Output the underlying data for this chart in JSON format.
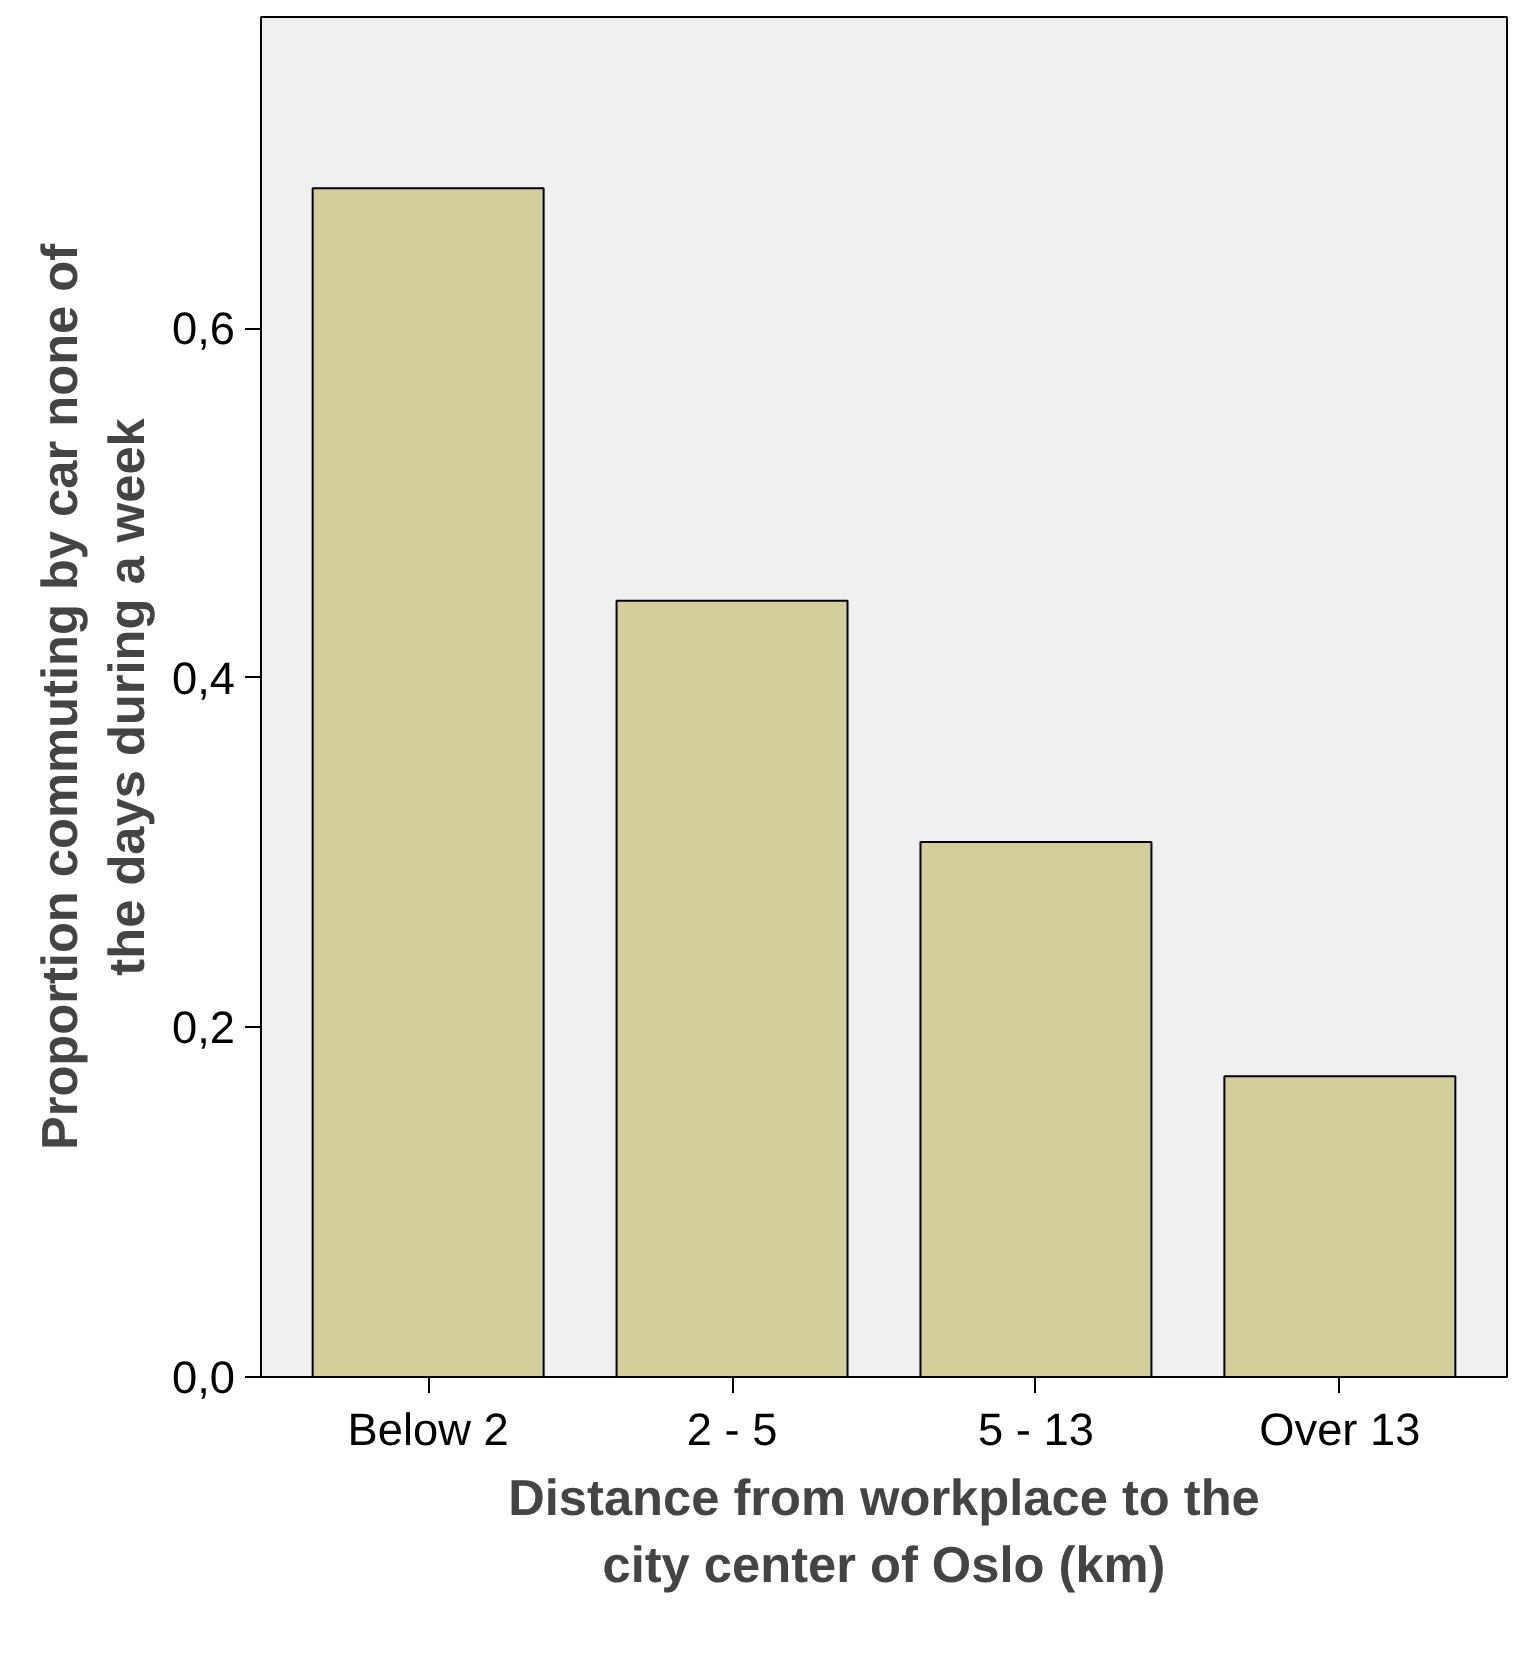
{
  "chart_data": {
    "type": "bar",
    "xlabel": "Distance from workplace to the city center of Oslo (km)",
    "ylabel": "Proportion commuting by car none of the days during a week",
    "categories": [
      "Below 2",
      "2 - 5",
      "5 - 13",
      "Over 13"
    ],
    "values": [
      0.68,
      0.444,
      0.306,
      0.172
    ],
    "color": "#d3ce9a",
    "ylim": [
      0,
      0.778
    ],
    "yticks": [
      {
        "value": 0,
        "label": "0,0"
      },
      {
        "value": 0.2,
        "label": "0,2"
      },
      {
        "value": 0.4,
        "label": "0,4"
      },
      {
        "value": 0.6,
        "label": "0,6"
      }
    ],
    "grid": false
  }
}
